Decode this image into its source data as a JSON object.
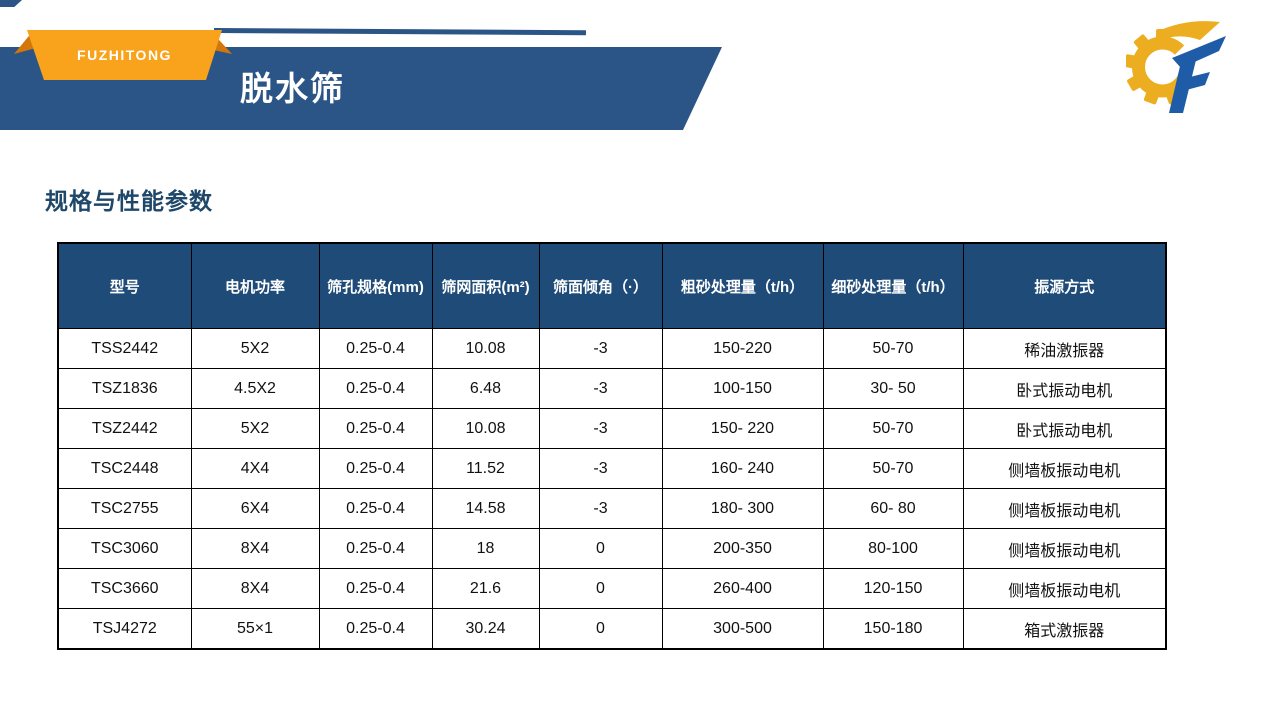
{
  "header": {
    "ribbon_label": "FUZHITONG",
    "page_title": "脱水筛"
  },
  "section": {
    "title": "规格与性能参数"
  },
  "colors": {
    "banner_navy": "#2B5586",
    "table_header_navy": "#1F4B78",
    "ribbon_orange": "#F9A21C",
    "ribbon_fold_orange": "#D4770B",
    "gear_gold": "#ECAE20",
    "logo_blue": "#1E5CA8",
    "section_title_navy": "#1F4769"
  },
  "table": {
    "columns": [
      "型号",
      "电机功率",
      "筛孔规格(mm)",
      "筛网面积(m²)",
      "筛面倾角（·）",
      "粗砂处理量（t/h）",
      "细砂处理量（t/h）",
      "振源方式"
    ],
    "rows": [
      [
        "TSS2442",
        "5X2",
        "0.25-0.4",
        "10.08",
        "-3",
        "150-220",
        "50-70",
        "稀油激振器"
      ],
      [
        "TSZ1836",
        "4.5X2",
        "0.25-0.4",
        "6.48",
        "-3",
        "100-150",
        "30- 50",
        "卧式振动电机"
      ],
      [
        "TSZ2442",
        "5X2",
        "0.25-0.4",
        "10.08",
        "-3",
        "150- 220",
        "50-70",
        "卧式振动电机"
      ],
      [
        "TSC2448",
        "4X4",
        "0.25-0.4",
        "11.52",
        "-3",
        "160- 240",
        "50-70",
        "侧墙板振动电机"
      ],
      [
        "TSC2755",
        "6X4",
        "0.25-0.4",
        "14.58",
        "-3",
        "180- 300",
        "60- 80",
        "侧墙板振动电机"
      ],
      [
        "TSC3060",
        "8X4",
        "0.25-0.4",
        "18",
        "0",
        "200-350",
        "80-100",
        "侧墙板振动电机"
      ],
      [
        "TSC3660",
        "8X4",
        "0.25-0.4",
        "21.6",
        "0",
        "260-400",
        "120-150",
        "侧墙板振动电机"
      ],
      [
        "TSJ4272",
        "55×1",
        "0.25-0.4",
        "30.24",
        "0",
        "300-500",
        "150-180",
        "箱式激振器"
      ]
    ]
  }
}
